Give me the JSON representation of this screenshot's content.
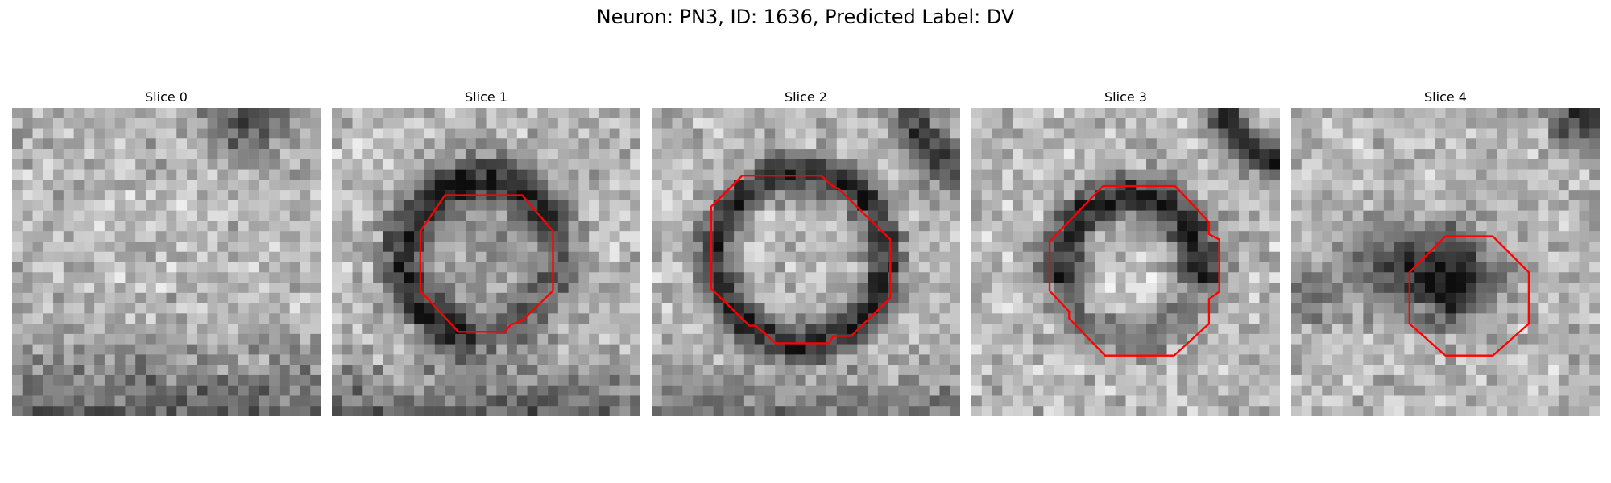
{
  "figure": {
    "title": "Neuron: PN3, ID: 1636, Predicted Label: DV"
  },
  "slices": [
    {
      "title": "Slice 0",
      "contour": false
    },
    {
      "title": "Slice 1",
      "contour": true
    },
    {
      "title": "Slice 2",
      "contour": true
    },
    {
      "title": "Slice 3",
      "contour": true
    },
    {
      "title": "Slice 4",
      "contour": true
    }
  ],
  "colors": {
    "contour": "#ff0000",
    "background": "#ffffff",
    "colormap": "grayscale"
  }
}
